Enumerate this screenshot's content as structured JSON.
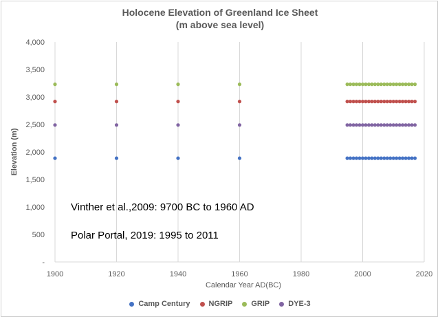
{
  "chart_data": {
    "type": "scatter",
    "title": "Holocene Elevation of Greenland Ice Sheet",
    "subtitle": "(m above sea level)",
    "xlabel": "Calendar Year AD(BC)",
    "ylabel": "Elevation (m)",
    "xlim": [
      1900,
      2020
    ],
    "ylim": [
      0,
      4000
    ],
    "x_ticks": [
      "1900",
      "1920",
      "1940",
      "1960",
      "1980",
      "2000",
      "2020"
    ],
    "y_ticks": [
      "-",
      "500",
      "1,000",
      "1,500",
      "2,000",
      "2,500",
      "3,000",
      "3,500",
      "4,000"
    ],
    "grid": "vertical",
    "legend_position": "bottom",
    "x_sparse": [
      1900,
      1920,
      1940,
      1960
    ],
    "x_dense_range": [
      1995,
      2017
    ],
    "series": [
      {
        "name": "Camp Century",
        "color": "#4472C4",
        "value": 1886
      },
      {
        "name": "NGRIP",
        "color": "#C0504D",
        "value": 2917
      },
      {
        "name": "GRIP",
        "color": "#9BBB59",
        "value": 3230
      },
      {
        "name": "DYE-3",
        "color": "#8064A2",
        "value": 2490
      }
    ],
    "annotations": [
      "Vinther et al.,2009: 9700 BC to 1960 AD",
      "Polar Portal, 2019: 1995 to 2011"
    ]
  }
}
